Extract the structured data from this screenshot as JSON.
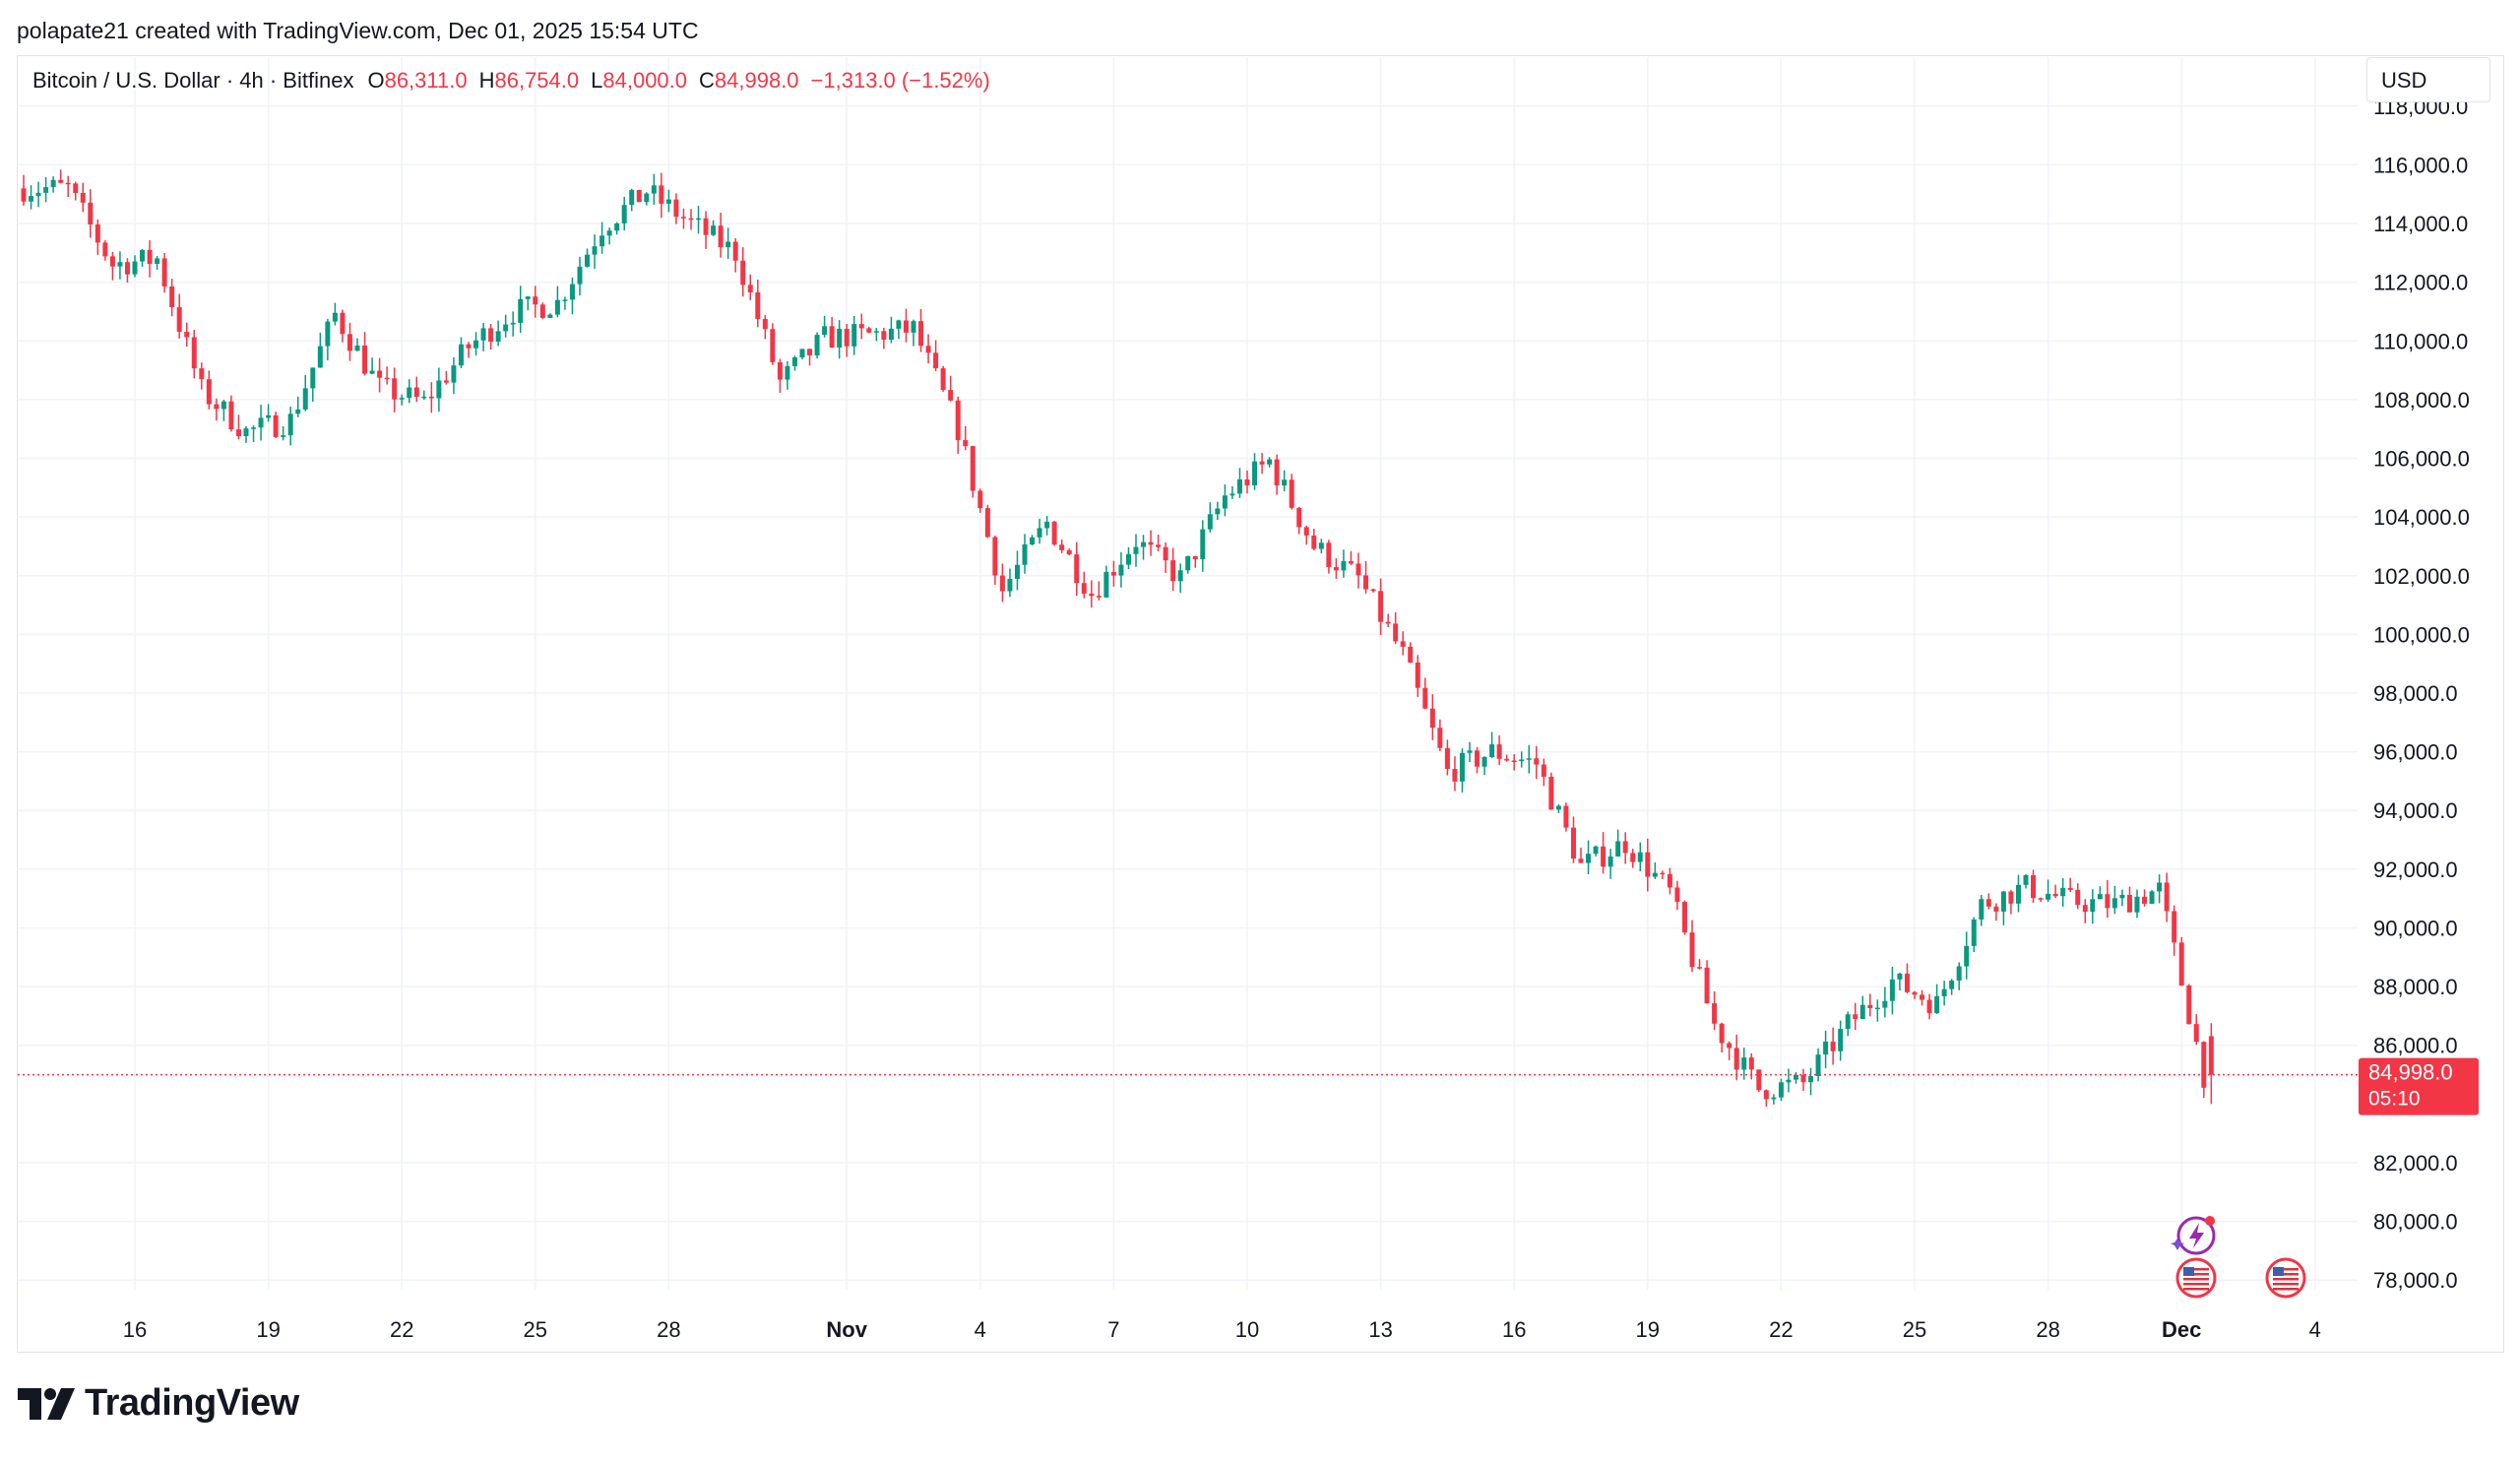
{
  "header": {
    "credit": "polapate21 created with TradingView.com, Dec 01, 2025 15:54 UTC"
  },
  "legend": {
    "symbol": "Bitcoin / U.S. Dollar · 4h · Bitfinex",
    "open_label": "O",
    "open": "86,311.0",
    "high_label": "H",
    "high": "86,754.0",
    "low_label": "L",
    "low": "84,000.0",
    "close_label": "C",
    "close": "84,998.0",
    "change": "−1,313.0 (−1.52%)"
  },
  "currency": "USD",
  "last_price": {
    "price": "84,998.0",
    "countdown": "05:10"
  },
  "footer": {
    "brand": "TradingView"
  },
  "colors": {
    "up": "#089981",
    "down": "#f23645",
    "grid": "#f0f3fa",
    "axis_text": "#131722",
    "price_line": "#f23645"
  },
  "chart_data": {
    "type": "candlestick",
    "title": "Bitcoin / U.S. Dollar · 4h · Bitfinex",
    "x_ticks": [
      "16",
      "19",
      "22",
      "25",
      "28",
      "Nov",
      "4",
      "7",
      "10",
      "13",
      "16",
      "19",
      "22",
      "25",
      "28",
      "Dec",
      "4"
    ],
    "x_tick_dates": [
      "2025-10-16",
      "2025-10-19",
      "2025-10-22",
      "2025-10-25",
      "2025-10-28",
      "2025-11-01",
      "2025-11-04",
      "2025-11-07",
      "2025-11-10",
      "2025-11-13",
      "2025-11-16",
      "2025-11-19",
      "2025-11-22",
      "2025-11-25",
      "2025-11-28",
      "2025-12-01",
      "2025-12-04"
    ],
    "y_ticks": [
      "118,000.0",
      "116,000.0",
      "114,000.0",
      "112,000.0",
      "110,000.0",
      "108,000.0",
      "106,000.0",
      "104,000.0",
      "102,000.0",
      "100,000.0",
      "98,000.0",
      "96,000.0",
      "94,000.0",
      "92,000.0",
      "90,000.0",
      "88,000.0",
      "86,000.0",
      "82,000.0",
      "80,000.0",
      "78,000.0"
    ],
    "y_range": [
      77000,
      119000
    ],
    "last_close": 84998,
    "event_markers": [
      "flag-icon-us",
      "flag-icon-us",
      "lightning-icon"
    ],
    "closes": [
      {
        "date": "2025-10-14",
        "close": 115200
      },
      {
        "date": "2025-10-15",
        "close": 112600
      },
      {
        "date": "2025-10-16",
        "close": 112800
      },
      {
        "date": "2025-10-17",
        "close": 108300
      },
      {
        "date": "2025-10-18",
        "close": 106900
      },
      {
        "date": "2025-10-19",
        "close": 107300
      },
      {
        "date": "2025-10-20",
        "close": 110900
      },
      {
        "date": "2025-10-21",
        "close": 108400
      },
      {
        "date": "2025-10-22",
        "close": 107900
      },
      {
        "date": "2025-10-23",
        "close": 109800
      },
      {
        "date": "2025-10-24",
        "close": 111000
      },
      {
        "date": "2025-10-25",
        "close": 111300
      },
      {
        "date": "2025-10-26",
        "close": 113900
      },
      {
        "date": "2025-10-27",
        "close": 115100
      },
      {
        "date": "2025-10-28",
        "close": 114000
      },
      {
        "date": "2025-10-29",
        "close": 113000
      },
      {
        "date": "2025-10-30",
        "close": 108600
      },
      {
        "date": "2025-10-31",
        "close": 110100
      },
      {
        "date": "2025-11-01",
        "close": 110200
      },
      {
        "date": "2025-11-02",
        "close": 110400
      },
      {
        "date": "2025-11-03",
        "close": 107000
      },
      {
        "date": "2025-11-04",
        "close": 101500
      },
      {
        "date": "2025-11-05",
        "close": 103800
      },
      {
        "date": "2025-11-06",
        "close": 101400
      },
      {
        "date": "2025-11-07",
        "close": 103200
      },
      {
        "date": "2025-11-08",
        "close": 101900
      },
      {
        "date": "2025-11-09",
        "close": 104700
      },
      {
        "date": "2025-11-10",
        "close": 105900
      },
      {
        "date": "2025-11-11",
        "close": 103000
      },
      {
        "date": "2025-11-12",
        "close": 101900
      },
      {
        "date": "2025-11-13",
        "close": 99300
      },
      {
        "date": "2025-11-14",
        "close": 95300
      },
      {
        "date": "2025-11-15",
        "close": 96000
      },
      {
        "date": "2025-11-16",
        "close": 95600
      },
      {
        "date": "2025-11-17",
        "close": 92100
      },
      {
        "date": "2025-11-18",
        "close": 92900
      },
      {
        "date": "2025-11-19",
        "close": 91200
      },
      {
        "date": "2025-11-20",
        "close": 86700
      },
      {
        "date": "2025-11-21",
        "close": 84500
      },
      {
        "date": "2025-11-22",
        "close": 84700
      },
      {
        "date": "2025-11-23",
        "close": 86700
      },
      {
        "date": "2025-11-24",
        "close": 88200
      },
      {
        "date": "2025-11-25",
        "close": 87400
      },
      {
        "date": "2025-11-26",
        "close": 90800
      },
      {
        "date": "2025-11-27",
        "close": 91400
      },
      {
        "date": "2025-11-28",
        "close": 90900
      },
      {
        "date": "2025-11-29",
        "close": 90800
      },
      {
        "date": "2025-11-30",
        "close": 91300
      },
      {
        "date": "2025-12-01",
        "close": 84998
      }
    ]
  }
}
